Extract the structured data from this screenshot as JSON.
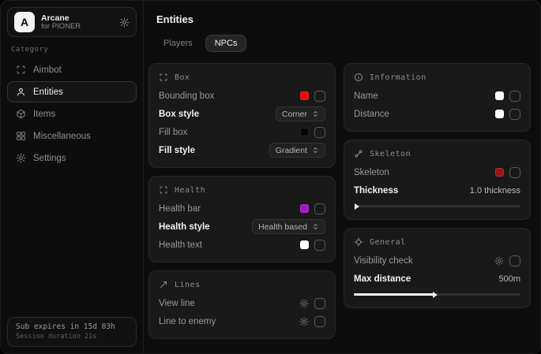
{
  "sidebar": {
    "brand": {
      "logo_letter": "A",
      "title": "Arcane",
      "subtitle": "for PIONER"
    },
    "category_label": "Category",
    "items": [
      {
        "label": "Aimbot",
        "icon": "scan-icon",
        "active": false
      },
      {
        "label": "Entities",
        "icon": "person-icon",
        "active": true
      },
      {
        "label": "Items",
        "icon": "cube-icon",
        "active": false
      },
      {
        "label": "Miscellaneous",
        "icon": "grid-icon",
        "active": false
      },
      {
        "label": "Settings",
        "icon": "gear-icon",
        "active": false
      }
    ],
    "footer": {
      "line1": "Sub expires in 15d 03h",
      "line2": "Session duration 21s"
    }
  },
  "main": {
    "title": "Entities",
    "tabs": [
      {
        "label": "Players",
        "active": false
      },
      {
        "label": "NPCs",
        "active": true
      }
    ]
  },
  "cards": {
    "box": {
      "title": "Box",
      "rows": [
        {
          "label": "Bounding box",
          "type": "color-checkbox",
          "color": "#f40707",
          "checked": false
        },
        {
          "label": "Box style",
          "type": "dropdown",
          "value": "Corner"
        },
        {
          "label": "Fill box",
          "type": "color-checkbox",
          "color": "#050505",
          "checked": false
        },
        {
          "label": "Fill style",
          "type": "dropdown",
          "value": "Gradient"
        }
      ]
    },
    "health": {
      "title": "Health",
      "rows": [
        {
          "label": "Health bar",
          "type": "color-checkbox",
          "color": "#a517c4",
          "checked": false
        },
        {
          "label": "Health style",
          "type": "dropdown",
          "value": "Health based"
        },
        {
          "label": "Health text",
          "type": "color-checkbox",
          "color": "#ffffff",
          "checked": false
        }
      ]
    },
    "lines": {
      "title": "Lines",
      "rows": [
        {
          "label": "View line",
          "type": "gear-checkbox",
          "checked": false
        },
        {
          "label": "Line to enemy",
          "type": "gear-checkbox",
          "checked": false
        }
      ]
    },
    "information": {
      "title": "Information",
      "rows": [
        {
          "label": "Name",
          "type": "color-checkbox",
          "color": "#ffffff",
          "checked": false
        },
        {
          "label": "Distance",
          "type": "color-checkbox",
          "color": "#ffffff",
          "checked": false
        }
      ]
    },
    "skeleton": {
      "title": "Skeleton",
      "rows": [
        {
          "label": "Skeleton",
          "type": "color-checkbox",
          "color": "#9c1616",
          "checked": false
        },
        {
          "label": "Thickness",
          "type": "slider",
          "value": "1.0 thickness",
          "percent": 1
        }
      ]
    },
    "general": {
      "title": "General",
      "rows": [
        {
          "label": "Visibility check",
          "type": "gear-checkbox",
          "checked": false
        },
        {
          "label": "Max distance",
          "type": "slider",
          "value": "500m",
          "percent": 48
        }
      ]
    }
  }
}
